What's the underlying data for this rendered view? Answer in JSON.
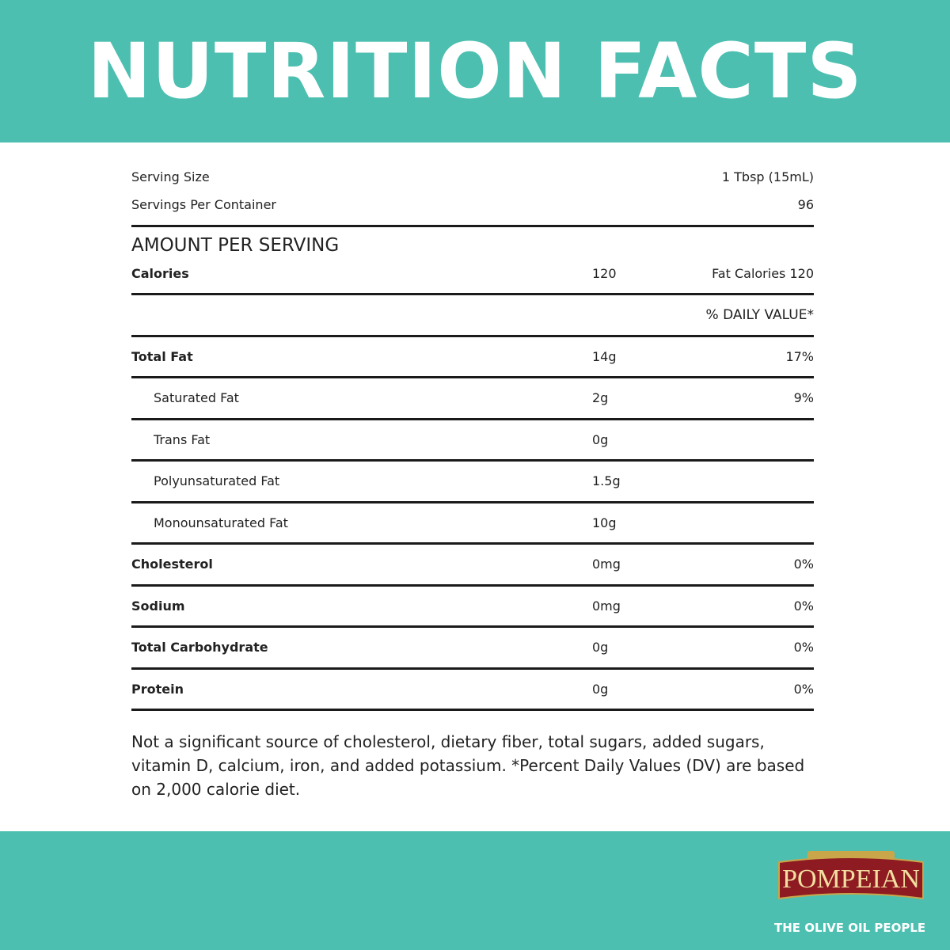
{
  "title": "NUTRITION FACTS",
  "serving": {
    "size_label": "Serving Size",
    "size_value": "1 Tbsp (15mL)",
    "per_container_label": "Servings Per Container",
    "per_container_value": "96"
  },
  "amount_header": "AMOUNT PER SERVING",
  "calories": {
    "label": "Calories",
    "value": "120",
    "fat_calories": "Fat Calories 120"
  },
  "daily_value_header": "% DAILY VALUE*",
  "nutrients": [
    {
      "label": "Total Fat",
      "amount": "14g",
      "dv": "17%"
    },
    {
      "label": "Saturated Fat",
      "amount": "2g",
      "dv": "9%"
    },
    {
      "label": "Trans Fat",
      "amount": "0g",
      "dv": ""
    },
    {
      "label": "Polyunsaturated Fat",
      "amount": "1.5g",
      "dv": ""
    },
    {
      "label": "Monounsaturated Fat",
      "amount": "10g",
      "dv": ""
    },
    {
      "label": "Cholesterol",
      "amount": "0mg",
      "dv": "0%"
    },
    {
      "label": "Sodium",
      "amount": "0mg",
      "dv": "0%"
    },
    {
      "label": "Total Carbohydrate",
      "amount": "0g",
      "dv": "0%"
    },
    {
      "label": "Protein",
      "amount": "0g",
      "dv": "0%"
    }
  ],
  "footnote": "Not a significant source of cholesterol, dietary fiber, total sugars, added sugars, vitamin D, calcium, iron, and added potassium. *Percent Daily Values (DV) are based on 2,000 calorie diet.",
  "brand": {
    "name": "POMPEIAN",
    "tagline": "THE OLIVE OIL PEOPLE"
  },
  "colors": {
    "teal": "#4cbfb0",
    "logo_red": "#8e1a22",
    "logo_gold": "#f2dfa0"
  }
}
